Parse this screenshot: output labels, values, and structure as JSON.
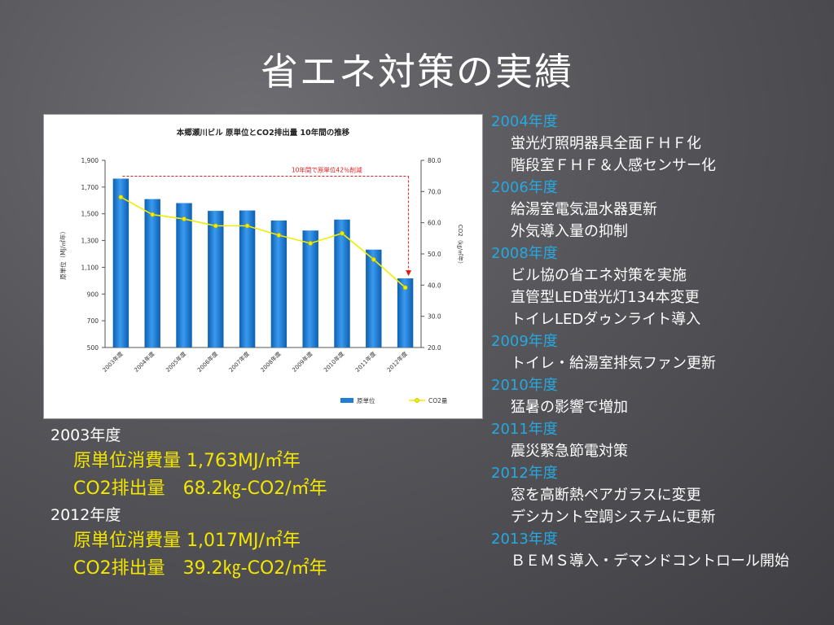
{
  "slide": {
    "title": "省エネ対策の実績"
  },
  "chart_data": {
    "type": "bar",
    "title": "本郷瀬川ビル 原単位とCO2排出量 10年間の推移",
    "categories": [
      "2003年度",
      "2004年度",
      "2005年度",
      "2006年度",
      "2007年度",
      "2008年度",
      "2009年度",
      "2010年度",
      "2011年度",
      "2012年度"
    ],
    "series": [
      {
        "name": "原単位",
        "type": "bar",
        "axis": "left",
        "color": "#1f7fd4",
        "values": [
          1763,
          1610,
          1580,
          1522,
          1525,
          1450,
          1375,
          1457,
          1232,
          1017
        ]
      },
      {
        "name": "CO2量",
        "type": "line",
        "axis": "right",
        "color": "#f2ec00",
        "values": [
          68.2,
          62.6,
          61.2,
          59.0,
          59.0,
          56.0,
          53.4,
          56.6,
          48.2,
          39.2
        ]
      }
    ],
    "ylabel": "原単位（MJ/㎡年）",
    "y2label": "CO2（㎏/㎡年）",
    "ylim": [
      500,
      1900
    ],
    "yticks": [
      "1,900",
      "1,700",
      "1,500",
      "1,300",
      "1,100",
      "900",
      "700",
      "500"
    ],
    "y2lim": [
      20,
      80
    ],
    "y2ticks": [
      "80.0",
      "70.0",
      "60.0",
      "50.0",
      "40.0",
      "30.0",
      "20.0"
    ],
    "annotation": "10年間で原単位42％削減",
    "legend_position": "bottom-right",
    "grid": false
  },
  "summary": [
    {
      "year": "2003年度",
      "lines": [
        "原単位消費量 1,763MJ/㎡年",
        "CO2排出量　68.2㎏-CO2/㎡年"
      ]
    },
    {
      "year": "2012年度",
      "lines": [
        "原単位消費量 1,017MJ/㎡年",
        "CO2排出量　39.2㎏-CO2/㎡年"
      ]
    }
  ],
  "history": [
    {
      "year": "2004年度",
      "items": [
        "蛍光灯照明器具全面ＦＨＦ化",
        "階段室ＦＨＦ＆人感センサー化"
      ]
    },
    {
      "year": "2006年度",
      "items": [
        "給湯室電気温水器更新",
        "外気導入量の抑制"
      ]
    },
    {
      "year": "2008年度",
      "items": [
        "ビル協の省エネ対策を実施",
        "直管型LED蛍光灯134本変更",
        "トイレLEDダゥンライト導入"
      ]
    },
    {
      "year": "2009年度",
      "items": [
        "トイレ・給湯室排気ファン更新"
      ]
    },
    {
      "year": "2010年度",
      "items": [
        "猛暑の影響で増加"
      ]
    },
    {
      "year": "2011年度",
      "items": [
        "震災緊急節電対策"
      ]
    },
    {
      "year": "2012年度",
      "items": [
        "窓を高断熱ペアガラスに変更",
        "デシカント空調システムに更新"
      ]
    },
    {
      "year": "2013年度",
      "items": [
        "ＢＥＭＳ導入・デマンドコントロール開始"
      ]
    }
  ]
}
